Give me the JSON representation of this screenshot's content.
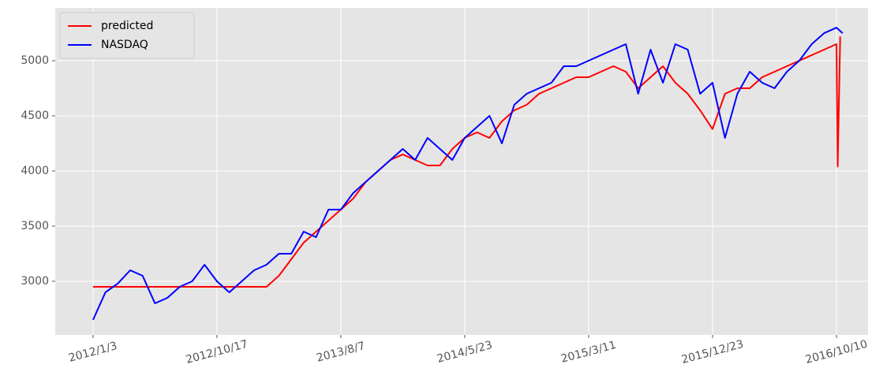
{
  "chart_data": {
    "type": "line",
    "series": [
      {
        "name": "predicted",
        "color": "#ff0000",
        "x": [
          0,
          20,
          40,
          60,
          80,
          100,
          120,
          140,
          160,
          180,
          200,
          220,
          240,
          260,
          280,
          300,
          320,
          340,
          360,
          380,
          400,
          420,
          440,
          460,
          480,
          500,
          520,
          540,
          560,
          580,
          600,
          620,
          640,
          660,
          680,
          700,
          720,
          740,
          760,
          780,
          800,
          820,
          840,
          860,
          880,
          900,
          920,
          940,
          960,
          980,
          1000,
          1020,
          1040,
          1060,
          1080,
          1100,
          1120,
          1140,
          1160,
          1180,
          1200,
          1202,
          1206
        ],
        "values": [
          2950,
          2950,
          2950,
          2950,
          2950,
          2950,
          2950,
          2950,
          2950,
          2950,
          2950,
          2950,
          2950,
          2950,
          2950,
          3050,
          3200,
          3350,
          3450,
          3550,
          3650,
          3750,
          3900,
          4000,
          4100,
          4150,
          4100,
          4050,
          4050,
          4200,
          4300,
          4350,
          4300,
          4450,
          4550,
          4600,
          4700,
          4750,
          4800,
          4850,
          4850,
          4900,
          4950,
          4900,
          4750,
          4850,
          4950,
          4800,
          4700,
          4550,
          4380,
          4700,
          4750,
          4750,
          4850,
          4900,
          4950,
          5000,
          5050,
          5100,
          5150,
          4040,
          5220
        ]
      },
      {
        "name": "NASDAQ",
        "color": "#0000ff",
        "x": [
          0,
          20,
          40,
          60,
          80,
          100,
          120,
          140,
          160,
          180,
          200,
          220,
          240,
          260,
          280,
          300,
          320,
          340,
          360,
          380,
          400,
          420,
          440,
          460,
          480,
          500,
          520,
          540,
          560,
          580,
          600,
          620,
          640,
          660,
          680,
          700,
          720,
          740,
          760,
          780,
          800,
          820,
          840,
          860,
          880,
          900,
          920,
          940,
          960,
          980,
          1000,
          1020,
          1040,
          1060,
          1080,
          1100,
          1120,
          1140,
          1160,
          1180,
          1200,
          1210
        ],
        "values": [
          2650,
          2900,
          2980,
          3100,
          3050,
          2800,
          2850,
          2950,
          3000,
          3150,
          3000,
          2900,
          3000,
          3100,
          3150,
          3250,
          3250,
          3450,
          3400,
          3650,
          3650,
          3800,
          3900,
          4000,
          4100,
          4200,
          4100,
          4300,
          4200,
          4100,
          4300,
          4400,
          4500,
          4250,
          4600,
          4700,
          4750,
          4800,
          4950,
          4950,
          5000,
          5050,
          5100,
          5150,
          4700,
          5100,
          4800,
          5150,
          5100,
          4700,
          4800,
          4300,
          4700,
          4900,
          4800,
          4750,
          4900,
          5000,
          5150,
          5250,
          5300,
          5250
        ]
      }
    ],
    "xlim": [
      -61,
      1251
    ],
    "xticks": [
      {
        "value": 0,
        "label": "2012/1/3"
      },
      {
        "value": 200,
        "label": "2012/10/17"
      },
      {
        "value": 400,
        "label": "2013/8/7"
      },
      {
        "value": 600,
        "label": "2014/5/23"
      },
      {
        "value": 800,
        "label": "2015/3/11"
      },
      {
        "value": 1000,
        "label": "2015/12/23"
      },
      {
        "value": 1200,
        "label": "2016/10/10"
      }
    ],
    "ylim": [
      2514,
      5479
    ],
    "yticks": [
      3000,
      3500,
      4000,
      4500,
      5000
    ],
    "grid": true,
    "legend": "upper left"
  }
}
